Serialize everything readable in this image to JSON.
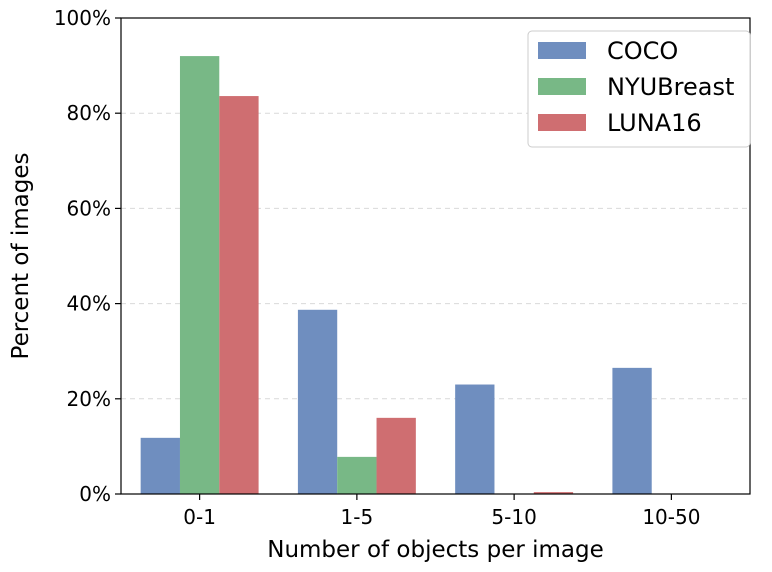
{
  "chart_data": {
    "type": "bar",
    "title": "",
    "xlabel": "Number of objects per image",
    "ylabel": "Percent of images",
    "categories": [
      "0-1",
      "1-5",
      "5-10",
      "10-50"
    ],
    "series": [
      {
        "name": "COCO",
        "color": "#6f8ebf",
        "values": [
          11.8,
          38.7,
          23.0,
          26.5
        ]
      },
      {
        "name": "NYUBreast",
        "color": "#78b886",
        "values": [
          92.0,
          7.8,
          0.0,
          0.0
        ]
      },
      {
        "name": "LUNA16",
        "color": "#cf6e71",
        "values": [
          83.6,
          16.0,
          0.4,
          0.0
        ]
      }
    ],
    "ylim": [
      0,
      100
    ],
    "yticks": [
      0,
      20,
      40,
      60,
      80,
      100
    ],
    "ytick_labels": [
      "0%",
      "20%",
      "40%",
      "60%",
      "80%",
      "100%"
    ],
    "grid": "horizontal dashed",
    "legend_position": "top-right"
  }
}
